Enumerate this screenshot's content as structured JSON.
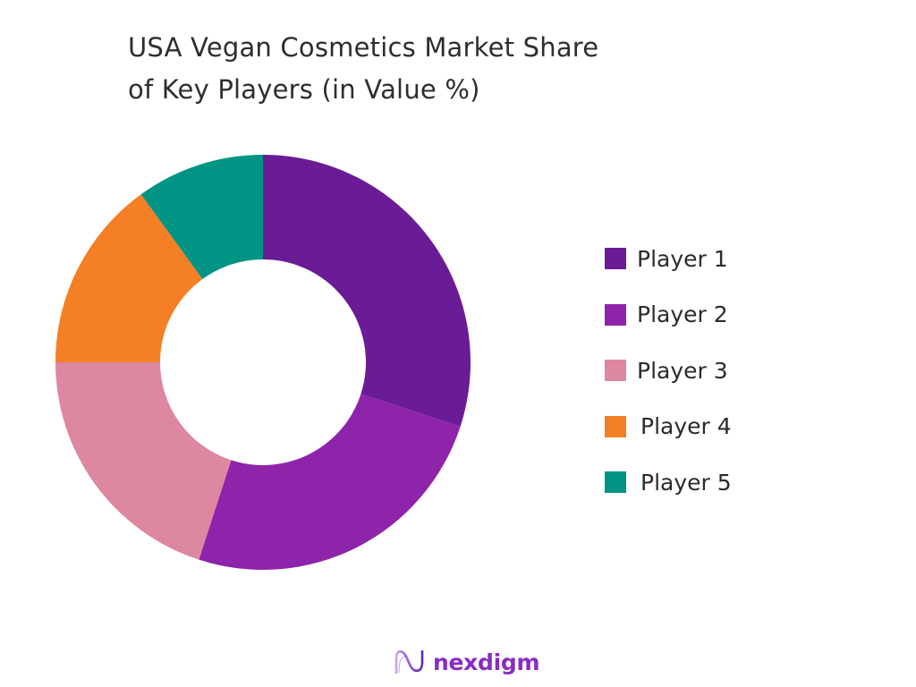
{
  "title": {
    "line1": "USA Vegan Cosmetics Market Share",
    "line2": "of Key Players (in Value %)"
  },
  "legend": {
    "items": [
      {
        "label": "Player 1",
        "color": "#6a1b96"
      },
      {
        "label": "Player 2",
        "color": "#8e24aa"
      },
      {
        "label": "Player 3",
        "color": "#de87a0"
      },
      {
        "label": "Player 4",
        "color": "#f47f24"
      },
      {
        "label": "Player 5",
        "color": "#009485"
      }
    ]
  },
  "logo": {
    "text": "nexdigm",
    "icon": "nexdigm-wave-icon"
  },
  "chart_data": {
    "type": "pie",
    "subtype": "donut",
    "title": "USA Vegan Cosmetics Market Share of Key Players (in Value %)",
    "categories": [
      "Player 1",
      "Player 2",
      "Player 3",
      "Player 4",
      "Player 5"
    ],
    "values": [
      30,
      25,
      20,
      15,
      10
    ],
    "colors": [
      "#6a1b96",
      "#8e24aa",
      "#de87a0",
      "#f47f24",
      "#009485"
    ],
    "start_angle_deg": 0,
    "direction": "clockwise",
    "legend_position": "right",
    "data_labels": false
  }
}
